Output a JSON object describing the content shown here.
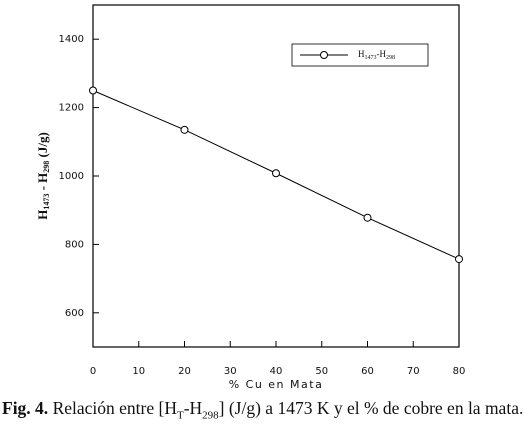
{
  "chart_data": {
    "type": "line",
    "x_label": "% Cu en Mata",
    "y_label": [
      "H",
      "1473",
      " - H",
      "298",
      " (J/g)"
    ],
    "x": [
      0,
      20,
      40,
      60,
      80
    ],
    "series": [
      {
        "name": [
          "H",
          "1473",
          "-H",
          "298"
        ],
        "color": "#000000",
        "values": [
          1250,
          1135,
          1008,
          878,
          757
        ]
      }
    ],
    "xlim": [
      0,
      80
    ],
    "xticks": [
      0,
      10,
      20,
      30,
      40,
      50,
      60,
      70,
      80
    ],
    "ylim": [
      500,
      1500
    ],
    "yticks": [
      600,
      800,
      1000,
      1200,
      1400
    ],
    "legend": "upper right",
    "grid": false
  },
  "caption": {
    "label": "Fig. 4.",
    "text": [
      " Relación entre [H",
      "T",
      "-H",
      "298",
      "] (J/g) a 1473 K y el % de cobre en la mata."
    ]
  }
}
